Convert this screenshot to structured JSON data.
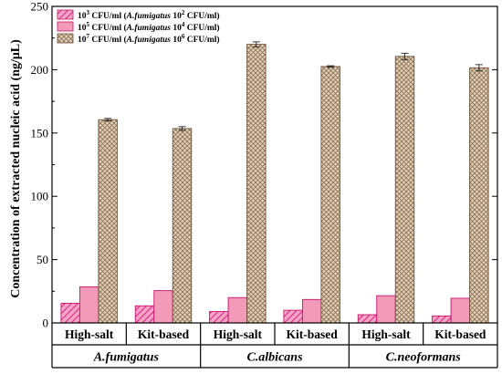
{
  "chart_data": {
    "type": "bar",
    "title": "",
    "xlabel": "",
    "ylabel": "Concentration of extracted nucleic acid  (ng/μL)",
    "ylim": [
      0,
      250
    ],
    "yticks": [
      "0",
      "50",
      "100",
      "150",
      "200",
      "250"
    ],
    "grid": false,
    "legend_position": "top-left",
    "categories": [
      "High-salt",
      "Kit-based",
      "High-salt",
      "Kit-based",
      "High-salt",
      "Kit-based"
    ],
    "groups": [
      {
        "label": "A.fumigatus",
        "categories": [
          "High-salt",
          "Kit-based"
        ]
      },
      {
        "label": "C.albicans",
        "categories": [
          "High-salt",
          "Kit-based"
        ]
      },
      {
        "label": "C.neoformans",
        "categories": [
          "High-salt",
          "Kit-based"
        ]
      }
    ],
    "series": [
      {
        "legend": {
          "base": "10",
          "exp": "3",
          "mid": " CFU/ml (",
          "org": "A.fumigatus",
          "base2": " 10",
          "exp2": "2",
          "tail": " CFU/ml)"
        },
        "color": "#f03c90",
        "pattern": "diagonal",
        "values": [
          15.5,
          13.5,
          9.0,
          10.0,
          6.5,
          5.5
        ],
        "errors": [
          0,
          0,
          0,
          0,
          0,
          0
        ]
      },
      {
        "legend": {
          "base": "10",
          "exp": "5",
          "mid": " CFU/ml (",
          "org": "A.fumigatus",
          "base2": " 10",
          "exp2": "4",
          "tail": " CFU/ml)"
        },
        "color": "#f29ab8",
        "pattern": "solid",
        "values": [
          28.5,
          25.5,
          20.0,
          18.5,
          21.5,
          19.5
        ],
        "errors": [
          0,
          0,
          0,
          0,
          0,
          0
        ]
      },
      {
        "legend": {
          "base": "10",
          "exp": "7",
          "mid": " CFU/ml (",
          "org": "A.fumigatus",
          "base2": " 10",
          "exp2": "6",
          "tail": " CFU/ml)"
        },
        "color": "#b89a7c",
        "pattern": "crosshatch",
        "values": [
          160.5,
          153.5,
          220.0,
          202.5,
          210.5,
          201.5
        ],
        "errors": [
          1.0,
          1.5,
          2.0,
          0.6,
          2.5,
          2.5
        ]
      }
    ]
  }
}
